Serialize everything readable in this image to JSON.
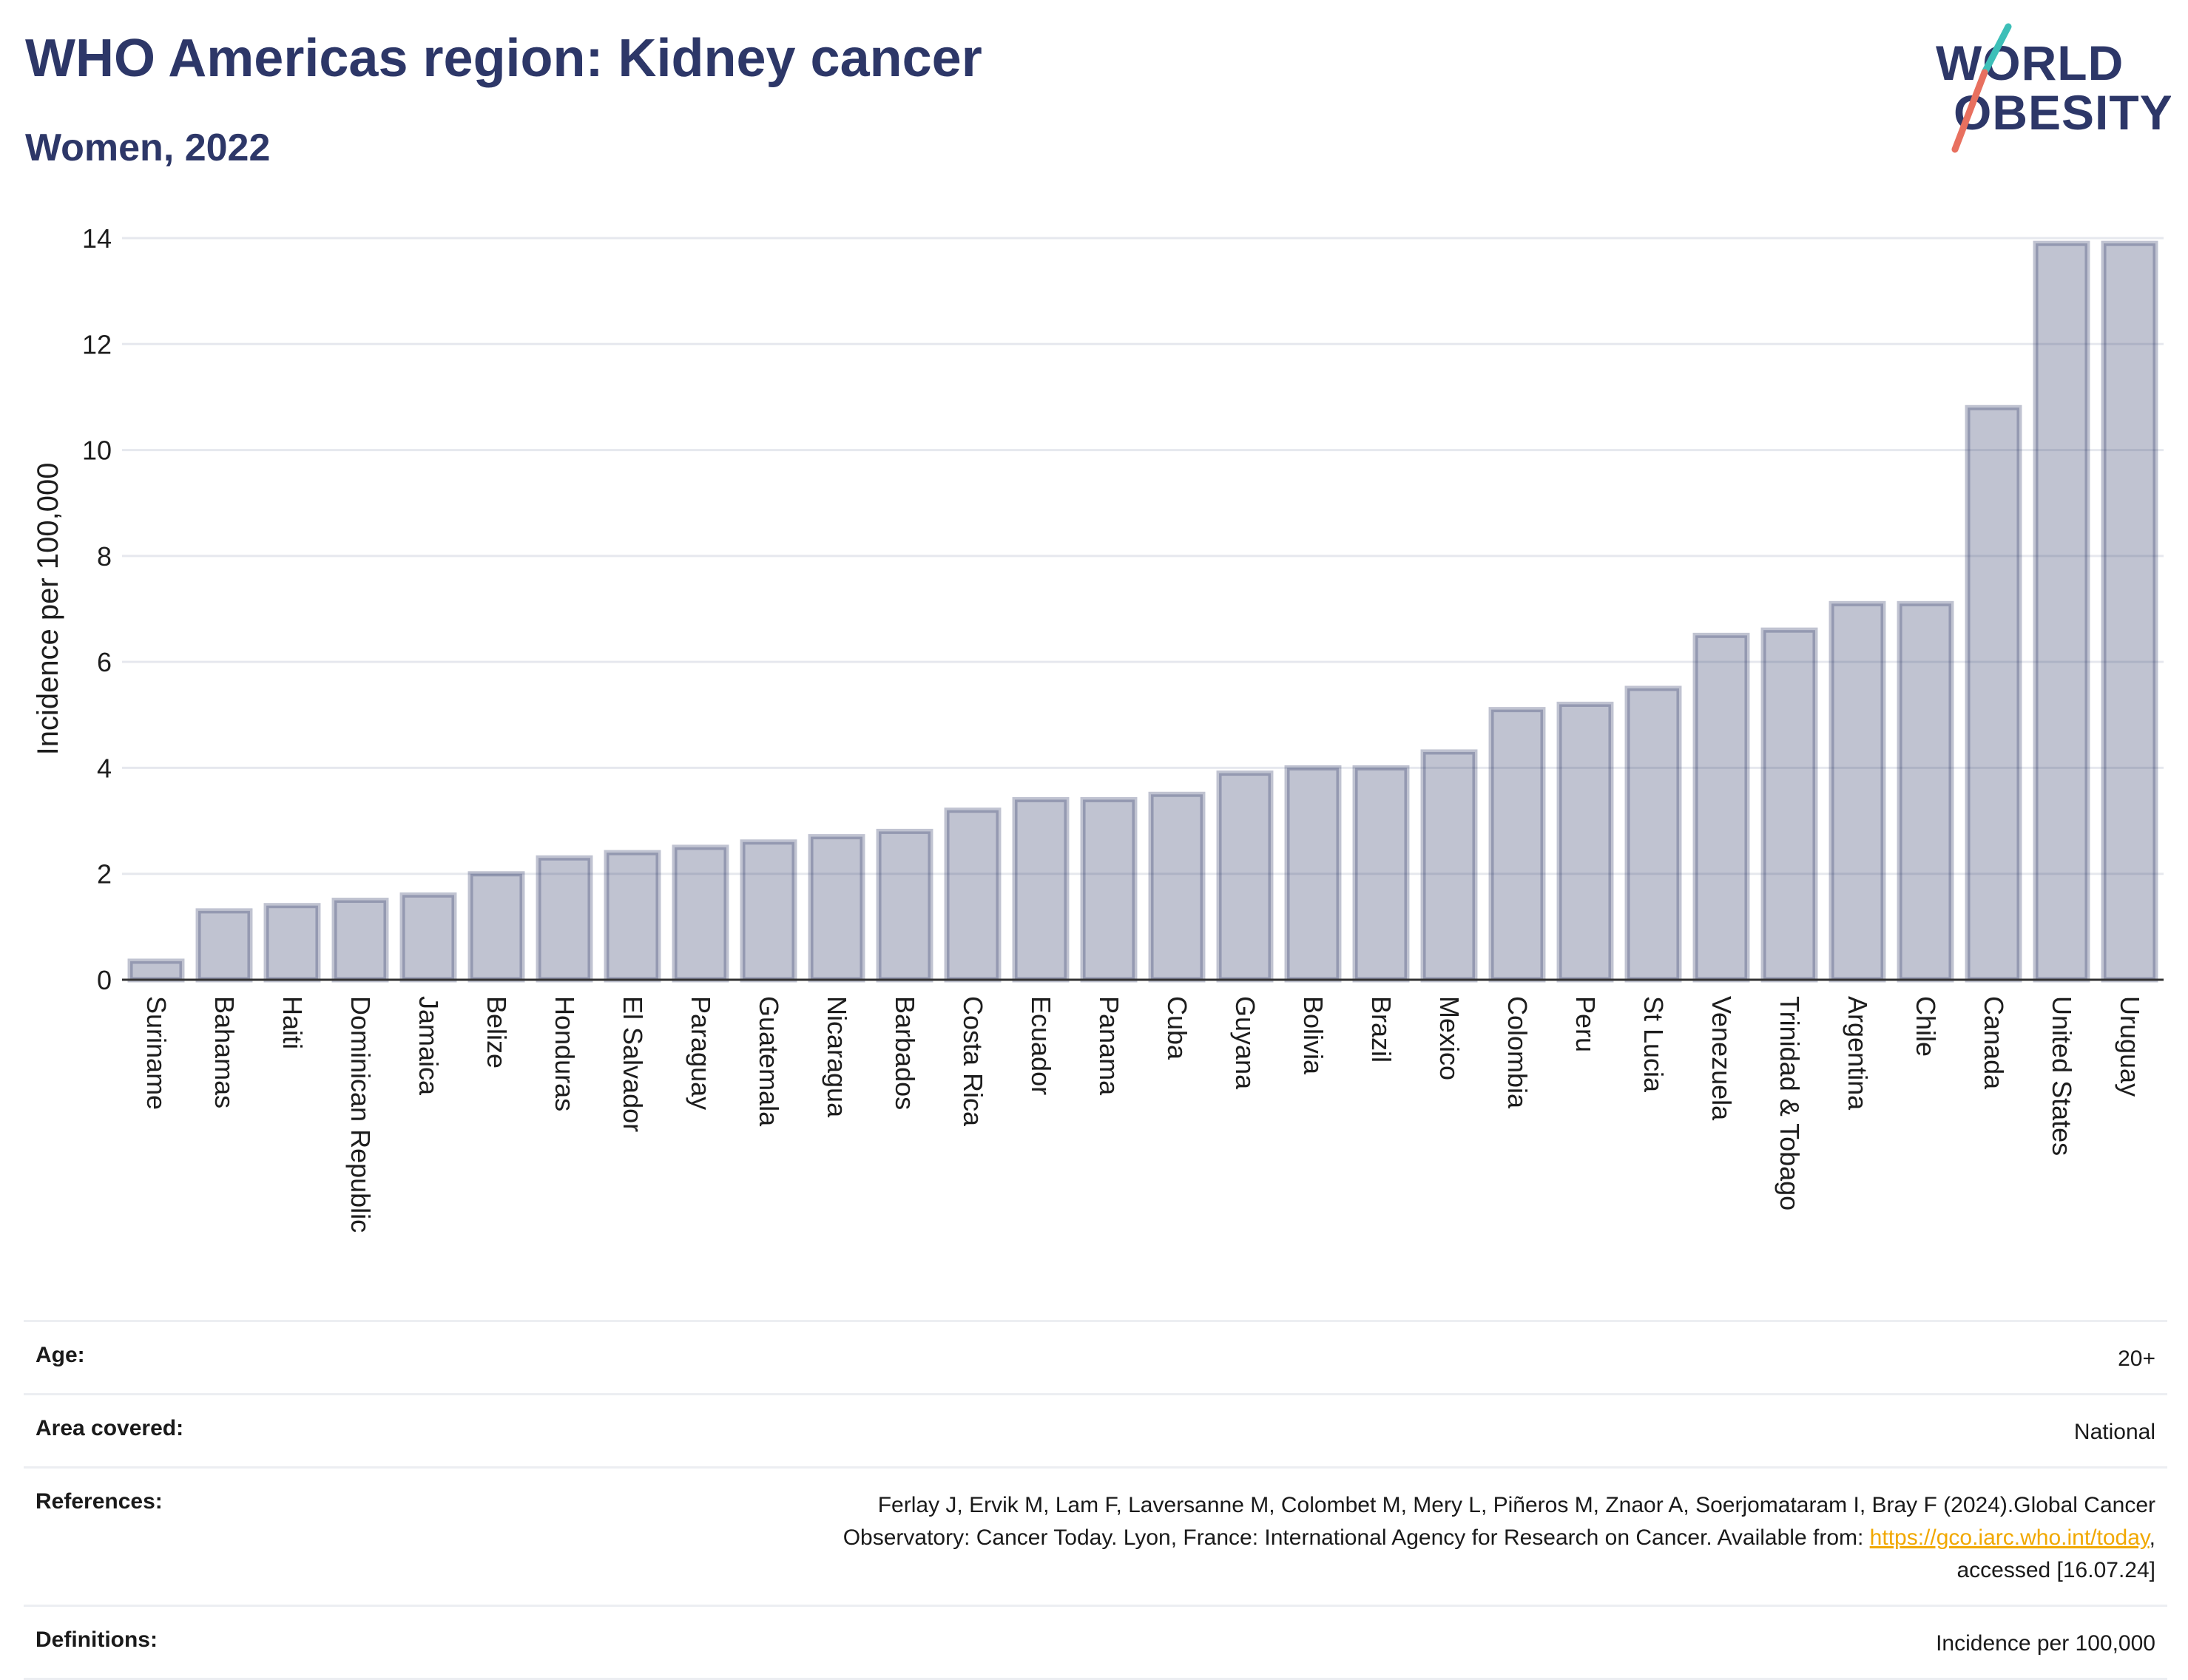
{
  "header": {
    "title": "WHO Americas region: Kidney cancer",
    "subtitle": "Women, 2022"
  },
  "logo": {
    "line1": "WORLD",
    "line2": "OBESITY",
    "slash_colors": [
      "#3dbfb8",
      "#e8705f"
    ],
    "text_color": "#2d3768"
  },
  "chart_data": {
    "type": "bar",
    "ylabel": "Incidence per 100,000",
    "ylim": [
      0,
      14
    ],
    "yticks": [
      "0",
      "2",
      "4",
      "6",
      "8",
      "10",
      "12",
      "14"
    ],
    "categories": [
      "Suriname",
      "Bahamas",
      "Haiti",
      "Dominican Republic",
      "Jamaica",
      "Belize",
      "Honduras",
      "El Salvador",
      "Paraguay",
      "Guatemala",
      "Nicaragua",
      "Barbados",
      "Costa Rica",
      "Ecuador",
      "Panama",
      "Cuba",
      "Guyana",
      "Bolivia",
      "Brazil",
      "Mexico",
      "Colombia",
      "Peru",
      "St Lucia",
      "Venezuela",
      "Trinidad & Tobago",
      "Argentina",
      "Chile",
      "Canada",
      "United States",
      "Uruguay"
    ],
    "values": [
      0.35,
      1.3,
      1.4,
      1.5,
      1.6,
      2.0,
      2.3,
      2.4,
      2.5,
      2.6,
      2.7,
      2.8,
      3.2,
      3.4,
      3.4,
      3.5,
      3.9,
      4.0,
      4.0,
      4.3,
      5.1,
      5.2,
      5.5,
      6.5,
      6.6,
      7.1,
      7.1,
      10.8,
      13.9,
      13.9
    ],
    "grid": true,
    "bar_color": "#2d3768"
  },
  "info": {
    "age_label": "Age:",
    "age_value": "20+",
    "area_label": "Area covered:",
    "area_value": "National",
    "references_label": "References:",
    "references_line1": "Ferlay J, Ervik M, Lam F, Laversanne M, Colombet M, Mery L, Piñeros M, Znaor A, Soerjomataram I, Bray F (2024).Global Cancer",
    "references_line2_prefix": "Observatory: Cancer Today. Lyon, France: International Agency for Research on Cancer. Available from: ",
    "references_link": "https://gco.iarc.who.int/today",
    "references_line2_suffix": ",",
    "references_line3": "accessed [16.07.24]",
    "definitions_label": "Definitions:",
    "definitions_value": "Incidence per 100,000"
  }
}
